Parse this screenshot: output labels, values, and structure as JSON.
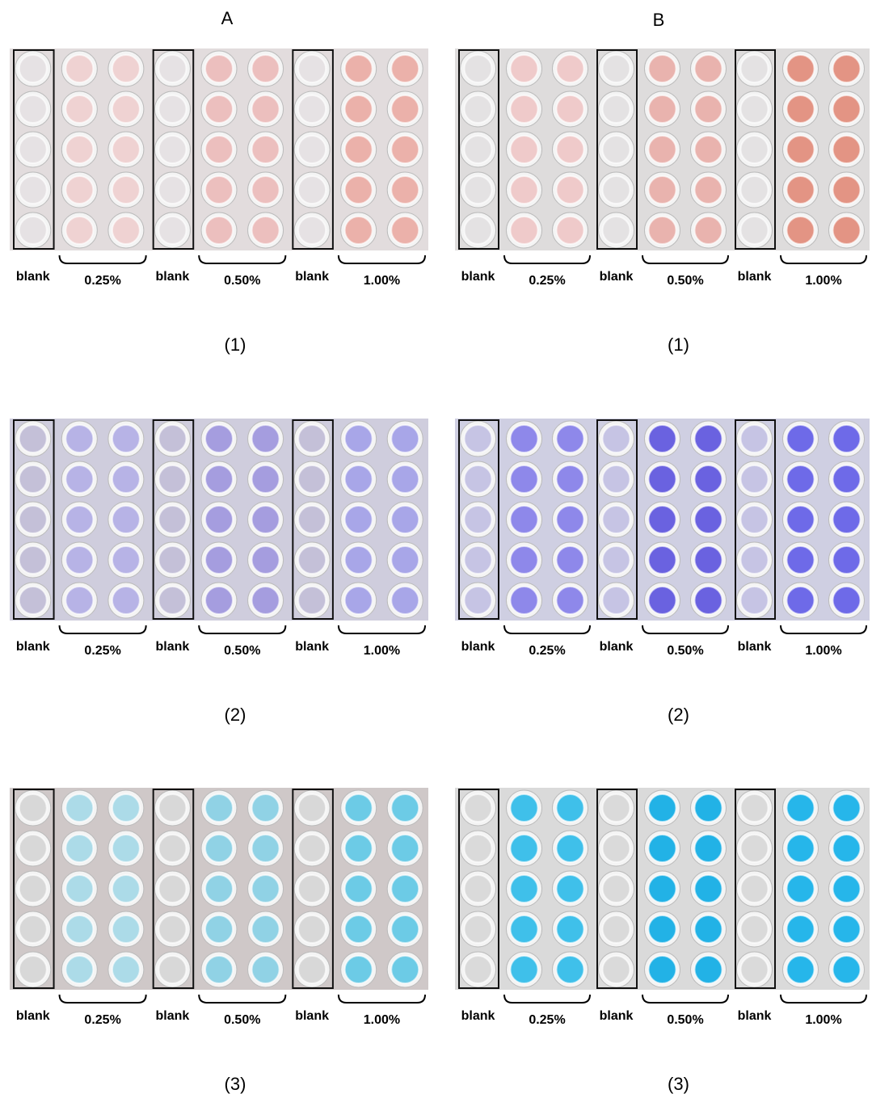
{
  "columns": [
    {
      "header": "A",
      "panels": [
        {
          "labels": [
            "blank",
            "0.25%",
            "blank",
            "0.50%",
            "blank",
            "1.00%"
          ],
          "caption": "(1)"
        },
        {
          "labels": [
            "blank",
            "0.25%",
            "blank",
            "0.50%",
            "blank",
            "1.00%"
          ],
          "caption": "(2)"
        },
        {
          "labels": [
            "blank",
            "0.25%",
            "blank",
            "0.50%",
            "blank",
            "1.00%"
          ],
          "caption": "(3)"
        }
      ]
    },
    {
      "header": "B",
      "panels": [
        {
          "labels": [
            "blank",
            "0.25%",
            "blank",
            "0.50%",
            "blank",
            "1.00%"
          ],
          "caption": "(1)"
        },
        {
          "labels": [
            "blank",
            "0.25%",
            "blank",
            "0.50%",
            "blank",
            "1.00%"
          ],
          "caption": "(2)"
        },
        {
          "labels": [
            "blank",
            "0.25%",
            "blank",
            "0.50%",
            "blank",
            "1.00%"
          ],
          "caption": "(3)"
        }
      ]
    }
  ]
}
